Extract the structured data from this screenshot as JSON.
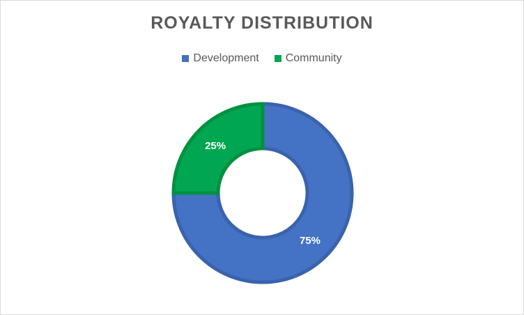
{
  "chart_data": {
    "type": "pie",
    "title": "ROYALTY DISTRIBUTION",
    "legend_position": "top",
    "categories": [
      "Development",
      "Community"
    ],
    "values": [
      75,
      25
    ],
    "data_labels": [
      "75%",
      "25%"
    ],
    "colors": [
      "#4472c4",
      "#00a651"
    ],
    "edge_colors": [
      "#3a63ad",
      "#00913f"
    ]
  }
}
